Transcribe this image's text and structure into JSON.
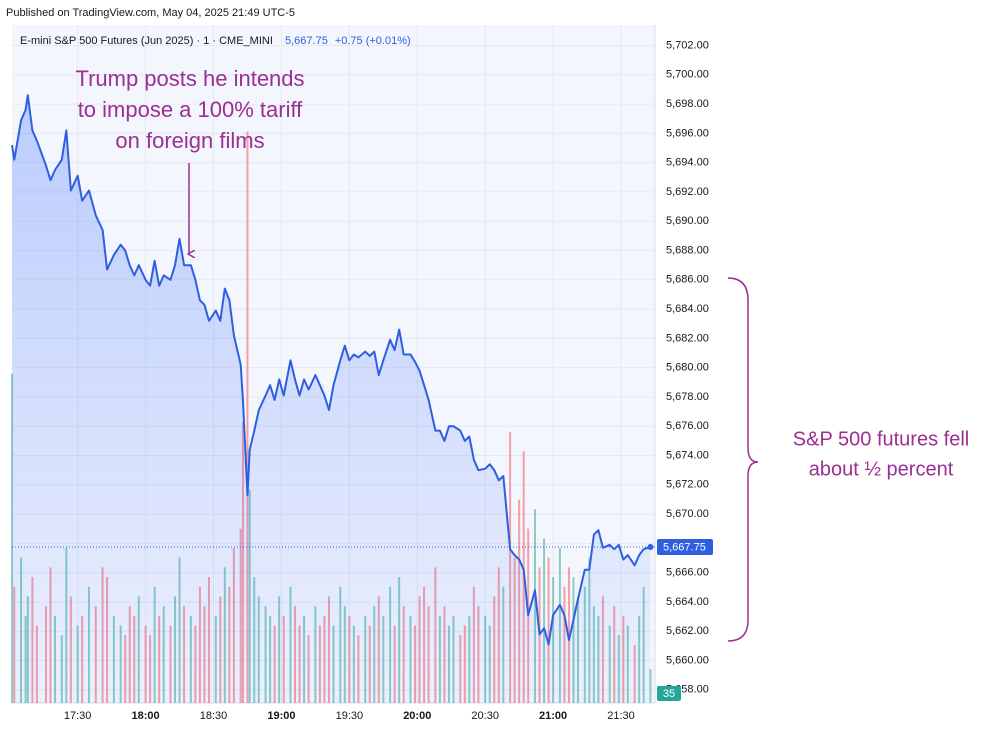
{
  "published": "Published on TradingView.com, May 04, 2025 21:49 UTC-5",
  "chart_data": {
    "type": "line",
    "symbol": "E-mini S&P 500 Futures (Jun 2025) · 1 · CME_MINI",
    "price": "5,667.75",
    "change": "+0.75 (+0.01%)",
    "x": [
      "17:01",
      "17:02",
      "17:05",
      "17:07",
      "17:08",
      "17:10",
      "17:12",
      "17:16",
      "17:18",
      "17:20",
      "17:23",
      "17:25",
      "17:27",
      "17:30",
      "17:32",
      "17:35",
      "17:38",
      "17:41",
      "17:43",
      "17:46",
      "17:49",
      "17:51",
      "17:53",
      "17:55",
      "17:57",
      "18:00",
      "18:02",
      "18:04",
      "18:06",
      "18:08",
      "18:11",
      "18:13",
      "18:15",
      "18:17",
      "18:20",
      "18:22",
      "18:24",
      "18:26",
      "18:28",
      "18:31",
      "18:33",
      "18:35",
      "18:37",
      "18:39",
      "18:42",
      "18:43",
      "18:45",
      "18:46",
      "18:48",
      "18:50",
      "18:53",
      "18:55",
      "18:57",
      "18:59",
      "19:01",
      "19:04",
      "19:06",
      "19:08",
      "19:10",
      "19:12",
      "19:15",
      "19:17",
      "19:19",
      "19:21",
      "19:23",
      "19:26",
      "19:28",
      "19:30",
      "19:32",
      "19:34",
      "19:37",
      "19:39",
      "19:41",
      "19:43",
      "19:45",
      "19:48",
      "19:50",
      "19:52",
      "19:54",
      "19:57",
      "19:59",
      "20:01",
      "20:03",
      "20:05",
      "20:08",
      "20:10",
      "20:12",
      "20:14",
      "20:16",
      "20:19",
      "20:21",
      "20:23",
      "20:25",
      "20:27",
      "20:30",
      "20:32",
      "20:34",
      "20:36",
      "20:38",
      "20:41",
      "20:43",
      "20:45",
      "20:47",
      "20:49",
      "20:52",
      "20:54",
      "20:56",
      "20:58",
      "21:00",
      "21:03",
      "21:05",
      "21:07",
      "21:09",
      "21:11",
      "21:14",
      "21:16",
      "21:18",
      "21:20",
      "21:22",
      "21:25",
      "21:27",
      "21:29",
      "21:31",
      "21:33",
      "21:36",
      "21:38",
      "21:40",
      "21:43"
    ],
    "series": [
      {
        "name": "E-mini S&P 500 Futures (Jun 2025)",
        "color": "#2f5fe0",
        "values": [
          5695.2,
          5694.2,
          5696.9,
          5697.6,
          5698.6,
          5696.2,
          5695.5,
          5693.8,
          5692.8,
          5693.5,
          5694.2,
          5696.2,
          5692.1,
          5693.1,
          5691.4,
          5692.1,
          5690.4,
          5689.4,
          5686.7,
          5687.7,
          5688.4,
          5688.0,
          5687.0,
          5686.3,
          5687.0,
          5686.0,
          5685.6,
          5687.3,
          5685.6,
          5686.3,
          5686.0,
          5687.0,
          5688.8,
          5687.0,
          5687.0,
          5686.0,
          5684.6,
          5684.3,
          5683.2,
          5683.9,
          5683.2,
          5685.4,
          5684.6,
          5682.2,
          5680.2,
          5677.8,
          5671.3,
          5674.4,
          5675.7,
          5677.1,
          5678.1,
          5678.8,
          5677.8,
          5679.2,
          5678.1,
          5680.5,
          5679.2,
          5678.1,
          5679.2,
          5678.5,
          5679.5,
          5678.8,
          5678.1,
          5677.1,
          5678.8,
          5680.5,
          5681.5,
          5680.5,
          5680.9,
          5680.7,
          5681.1,
          5680.8,
          5681.1,
          5679.5,
          5680.5,
          5681.9,
          5681.2,
          5682.6,
          5680.9,
          5680.9,
          5680.4,
          5679.8,
          5678.8,
          5677.8,
          5675.7,
          5675.7,
          5675.0,
          5676.0,
          5676.0,
          5675.7,
          5675.0,
          5675.3,
          5673.7,
          5673.0,
          5673.1,
          5673.4,
          5673.0,
          5672.3,
          5672.6,
          5667.6,
          5667.2,
          5666.9,
          5666.2,
          5663.1,
          5664.8,
          5661.8,
          5662.2,
          5661.1,
          5663.1,
          5663.8,
          5663.1,
          5661.4,
          5662.8,
          5664.2,
          5666.2,
          5666.2,
          5668.6,
          5668.9,
          5667.7,
          5667.9,
          5667.6,
          5667.9,
          5666.9,
          5667.2,
          5666.5,
          5667.2,
          5667.6,
          5667.75
        ]
      }
    ],
    "volume": [
      340,
      120,
      150,
      90,
      110,
      130,
      80,
      100,
      140,
      90,
      70,
      160,
      110,
      80,
      90,
      120,
      100,
      140,
      130,
      90,
      80,
      70,
      100,
      90,
      110,
      80,
      70,
      120,
      90,
      100,
      80,
      110,
      150,
      100,
      90,
      80,
      120,
      100,
      130,
      90,
      110,
      140,
      120,
      160,
      180,
      290,
      590,
      220,
      130,
      110,
      100,
      90,
      80,
      110,
      90,
      120,
      100,
      80,
      90,
      70,
      100,
      80,
      90,
      110,
      80,
      120,
      100,
      90,
      80,
      70,
      90,
      80,
      100,
      110,
      90,
      120,
      80,
      130,
      100,
      90,
      80,
      110,
      120,
      100,
      140,
      90,
      100,
      80,
      90,
      70,
      80,
      90,
      120,
      100,
      90,
      80,
      110,
      140,
      120,
      280,
      150,
      210,
      260,
      180,
      200,
      140,
      170,
      150,
      130,
      160,
      120,
      140,
      130,
      110,
      120,
      150,
      100,
      90,
      110,
      80,
      100,
      70,
      90,
      80,
      60,
      90,
      120,
      35
    ],
    "volume_lim": [
      0,
      700
    ],
    "xlim": [
      "17:01",
      "21:45"
    ],
    "xticks": [
      "17:30",
      "18:00",
      "18:30",
      "19:00",
      "19:30",
      "20:00",
      "20:30",
      "21:00",
      "21:30"
    ],
    "ylim": [
      5657.1,
      5703.4
    ],
    "yticks": [
      {
        "value": 5658,
        "label": "5,658.00"
      },
      {
        "value": 5660,
        "label": "5,660.00"
      },
      {
        "value": 5662,
        "label": "5,662.00"
      },
      {
        "value": 5664,
        "label": "5,664.00"
      },
      {
        "value": 5666,
        "label": "5,666.00"
      },
      {
        "value": 5668,
        "label": "5,668.00"
      },
      {
        "value": 5670,
        "label": "5,670.00"
      },
      {
        "value": 5672,
        "label": "5,672.00"
      },
      {
        "value": 5674,
        "label": "5,674.00"
      },
      {
        "value": 5676,
        "label": "5,676.00"
      },
      {
        "value": 5678,
        "label": "5,678.00"
      },
      {
        "value": 5680,
        "label": "5,680.00"
      },
      {
        "value": 5682,
        "label": "5,682.00"
      },
      {
        "value": 5684,
        "label": "5,684.00"
      },
      {
        "value": 5686,
        "label": "5,686.00"
      },
      {
        "value": 5688,
        "label": "5,688.00"
      },
      {
        "value": 5690,
        "label": "5,690.00"
      },
      {
        "value": 5692,
        "label": "5,692.00"
      },
      {
        "value": 5694,
        "label": "5,694.00"
      },
      {
        "value": 5696,
        "label": "5,696.00"
      },
      {
        "value": 5698,
        "label": "5,698.00"
      },
      {
        "value": 5700,
        "label": "5,700.00"
      },
      {
        "value": 5702,
        "label": "5,702.00"
      }
    ],
    "grid": true,
    "annotations": [
      {
        "lines": [
          "Trump posts he intends",
          "to impose a 100% tariff",
          "on foreign films"
        ]
      },
      {
        "lines": [
          "S&P 500 futures fell",
          "about ½  percent"
        ]
      }
    ]
  }
}
